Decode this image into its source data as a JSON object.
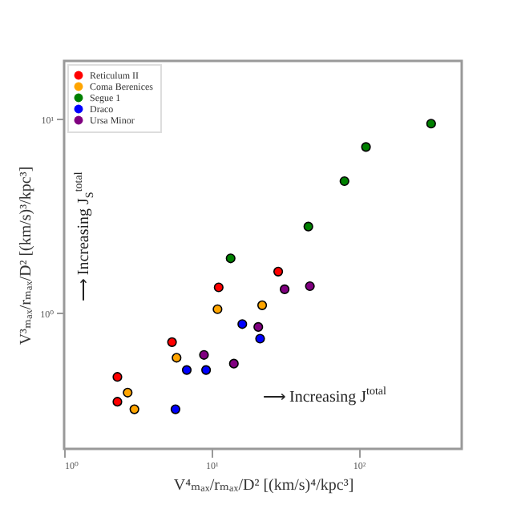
{
  "chart_data": {
    "type": "scatter",
    "xlabel": "V⁴ₘₐₓ/rₘₐₓ/D²   [(km/s)⁴/kpc³]",
    "ylabel": "V³ₘₐₓ/rₘₐₓ/D²   [(km/s)³/kpc³]",
    "annotations": [
      "⟶ Increasing   J$^{total}$",
      "⟶ Increasing   J$_{S}$$^{total}$"
    ],
    "log": "xy",
    "xlim": [
      1,
      500
    ],
    "ylim": [
      0.2,
      20
    ],
    "xticks": [
      {
        "value": 1,
        "label": "10⁰"
      },
      {
        "value": 10,
        "label": "10¹"
      },
      {
        "value": 100,
        "label": "10²"
      }
    ],
    "yticks": [
      {
        "value": 1,
        "label": "10⁰"
      },
      {
        "value": 10,
        "label": "10¹"
      }
    ],
    "legend": "top left",
    "marker": "circle",
    "grid": false,
    "series": [
      {
        "name": "Reticulum II",
        "color": "#ff0000",
        "x": [
          2.3,
          2.3,
          5.4,
          11.2,
          28.4
        ],
        "values": [
          0.47,
          0.35,
          0.71,
          1.36,
          1.64
        ]
      },
      {
        "name": "Coma Berenices",
        "color": "#ffa500",
        "x": [
          2.7,
          3.0,
          5.8,
          11.0,
          22.1
        ],
        "values": [
          0.39,
          0.32,
          0.59,
          1.05,
          1.1
        ]
      },
      {
        "name": "Segue 1",
        "color": "#008000",
        "x": [
          13.5,
          45.5,
          80,
          112,
          310
        ],
        "values": [
          1.92,
          2.8,
          4.8,
          7.2,
          9.5
        ]
      },
      {
        "name": "Draco",
        "color": "#0000ff",
        "x": [
          5.7,
          6.8,
          9.2,
          16.2,
          21.4
        ],
        "values": [
          0.32,
          0.51,
          0.51,
          0.88,
          0.74
        ]
      },
      {
        "name": "Ursa Minor",
        "color": "#800080",
        "x": [
          8.9,
          14.2,
          20.8,
          31.4,
          46.6
        ],
        "values": [
          0.61,
          0.55,
          0.85,
          1.33,
          1.38
        ]
      }
    ]
  }
}
